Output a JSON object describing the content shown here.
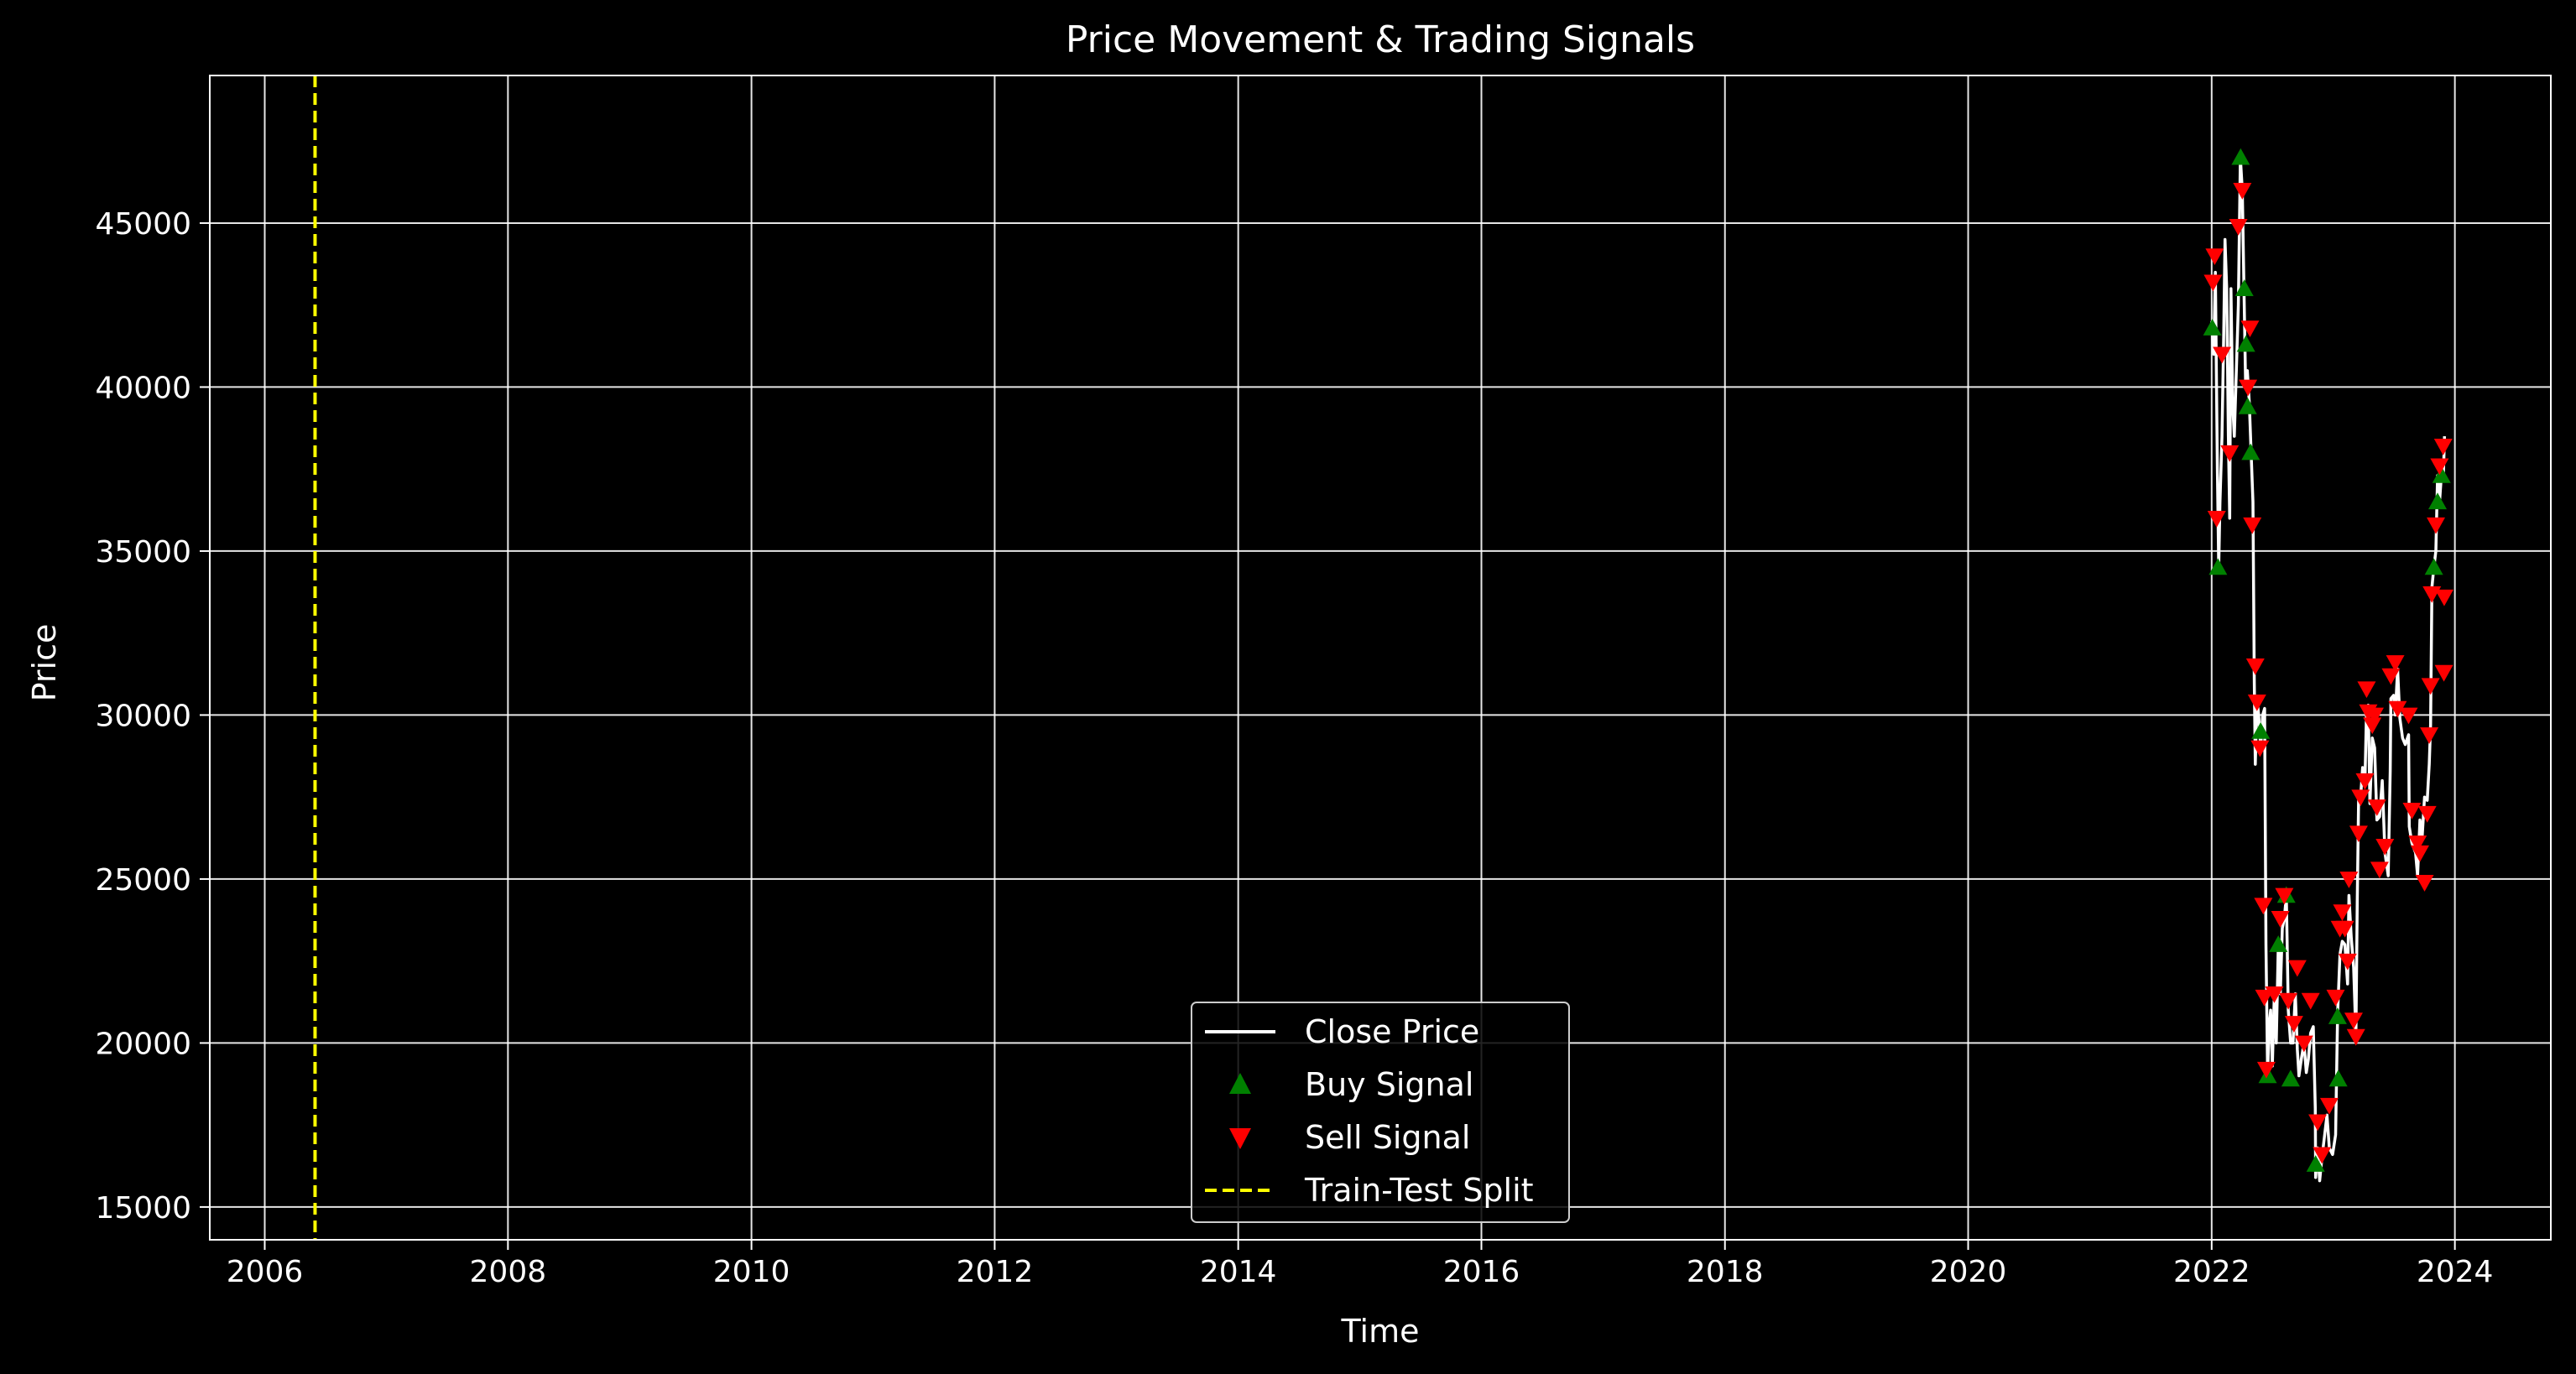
{
  "chart_data": {
    "type": "line",
    "title": "Price Movement & Trading Signals",
    "xlabel": "Time",
    "ylabel": "Price",
    "xlim": [
      "2005-07-20",
      "2024-10-15"
    ],
    "ylim": [
      14000,
      49500
    ],
    "x_ticks": [
      "2006",
      "2008",
      "2010",
      "2012",
      "2014",
      "2016",
      "2018",
      "2020",
      "2022",
      "2024"
    ],
    "y_ticks": [
      15000,
      20000,
      25000,
      30000,
      35000,
      40000,
      45000
    ],
    "grid": true,
    "legend_position": "lower-center",
    "colors": {
      "background": "#000000",
      "axes": "#ffffff",
      "grid": "#ffffff",
      "close": "#ffffff",
      "buy": "#008000",
      "sell": "#ff0000",
      "split": "#ffff00"
    },
    "legend": [
      {
        "key": "close",
        "label": "Close Price",
        "marker": "line"
      },
      {
        "key": "buy",
        "label": "Buy Signal",
        "marker": "triangle-up"
      },
      {
        "key": "sell",
        "label": "Sell Signal",
        "marker": "triangle-down"
      },
      {
        "key": "split",
        "label": "Train-Test Split",
        "marker": "dashed-line"
      }
    ],
    "train_test_split": "2006-06-01",
    "series": [
      {
        "name": "Close Price",
        "key": "close",
        "points": [
          [
            "2022-01-01",
            42000
          ],
          [
            "2022-01-07",
            41000
          ],
          [
            "2022-01-12",
            43500
          ],
          [
            "2022-01-18",
            37500
          ],
          [
            "2022-01-22",
            34500
          ],
          [
            "2022-01-26",
            36500
          ],
          [
            "2022-02-01",
            38500
          ],
          [
            "2022-02-06",
            41500
          ],
          [
            "2022-02-10",
            44500
          ],
          [
            "2022-02-15",
            43000
          ],
          [
            "2022-02-20",
            38500
          ],
          [
            "2022-02-24",
            36000
          ],
          [
            "2022-02-28",
            43000
          ],
          [
            "2022-03-05",
            39500
          ],
          [
            "2022-03-10",
            38500
          ],
          [
            "2022-03-16",
            40500
          ],
          [
            "2022-03-22",
            42500
          ],
          [
            "2022-03-28",
            47000
          ],
          [
            "2022-04-03",
            46000
          ],
          [
            "2022-04-08",
            43000
          ],
          [
            "2022-04-13",
            40000
          ],
          [
            "2022-04-18",
            40500
          ],
          [
            "2022-04-24",
            39500
          ],
          [
            "2022-04-30",
            37800
          ],
          [
            "2022-05-05",
            36500
          ],
          [
            "2022-05-09",
            31000
          ],
          [
            "2022-05-12",
            28500
          ],
          [
            "2022-05-17",
            30500
          ],
          [
            "2022-05-22",
            30000
          ],
          [
            "2022-05-28",
            29000
          ],
          [
            "2022-06-03",
            30000
          ],
          [
            "2022-06-09",
            30200
          ],
          [
            "2022-06-13",
            23000
          ],
          [
            "2022-06-18",
            19000
          ],
          [
            "2022-06-22",
            20500
          ],
          [
            "2022-06-27",
            21000
          ],
          [
            "2022-07-02",
            19300
          ],
          [
            "2022-07-08",
            21500
          ],
          [
            "2022-07-14",
            20000
          ],
          [
            "2022-07-20",
            23000
          ],
          [
            "2022-07-26",
            21500
          ],
          [
            "2022-08-01",
            23500
          ],
          [
            "2022-08-07",
            23800
          ],
          [
            "2022-08-13",
            24500
          ],
          [
            "2022-08-19",
            21000
          ],
          [
            "2022-08-26",
            20000
          ],
          [
            "2022-09-02",
            20000
          ],
          [
            "2022-09-09",
            21500
          ],
          [
            "2022-09-15",
            19800
          ],
          [
            "2022-09-20",
            19000
          ],
          [
            "2022-09-27",
            19500
          ],
          [
            "2022-10-05",
            20000
          ],
          [
            "2022-10-12",
            19100
          ],
          [
            "2022-10-18",
            19500
          ],
          [
            "2022-10-25",
            20300
          ],
          [
            "2022-11-02",
            20500
          ],
          [
            "2022-11-08",
            18000
          ],
          [
            "2022-11-09",
            15900
          ],
          [
            "2022-11-15",
            16800
          ],
          [
            "2022-11-21",
            15800
          ],
          [
            "2022-11-28",
            16500
          ],
          [
            "2022-12-05",
            17100
          ],
          [
            "2022-12-13",
            17800
          ],
          [
            "2022-12-20",
            16800
          ],
          [
            "2022-12-30",
            16600
          ],
          [
            "2023-01-08",
            17200
          ],
          [
            "2023-01-14",
            20900
          ],
          [
            "2023-01-21",
            22700
          ],
          [
            "2023-01-28",
            23100
          ],
          [
            "2023-02-05",
            23000
          ],
          [
            "2023-02-13",
            21800
          ],
          [
            "2023-02-17",
            24500
          ],
          [
            "2023-02-24",
            23200
          ],
          [
            "2023-03-03",
            22300
          ],
          [
            "2023-03-10",
            20200
          ],
          [
            "2023-03-14",
            24300
          ],
          [
            "2023-03-18",
            27400
          ],
          [
            "2023-03-24",
            27500
          ],
          [
            "2023-03-30",
            28400
          ],
          [
            "2023-04-06",
            28000
          ],
          [
            "2023-04-11",
            30200
          ],
          [
            "2023-04-16",
            30300
          ],
          [
            "2023-04-21",
            27300
          ],
          [
            "2023-04-28",
            29300
          ],
          [
            "2023-05-05",
            29000
          ],
          [
            "2023-05-12",
            26800
          ],
          [
            "2023-05-20",
            26900
          ],
          [
            "2023-05-28",
            28000
          ],
          [
            "2023-06-05",
            25800
          ],
          [
            "2023-06-15",
            25100
          ],
          [
            "2023-06-21",
            28300
          ],
          [
            "2023-06-23",
            30500
          ],
          [
            "2023-07-01",
            30600
          ],
          [
            "2023-07-06",
            30000
          ],
          [
            "2023-07-13",
            31400
          ],
          [
            "2023-07-20",
            29900
          ],
          [
            "2023-07-28",
            29300
          ],
          [
            "2023-08-05",
            29100
          ],
          [
            "2023-08-15",
            29400
          ],
          [
            "2023-08-17",
            26600
          ],
          [
            "2023-08-25",
            26100
          ],
          [
            "2023-09-05",
            25800
          ],
          [
            "2023-09-11",
            25100
          ],
          [
            "2023-09-18",
            26800
          ],
          [
            "2023-09-25",
            26300
          ],
          [
            "2023-10-02",
            27500
          ],
          [
            "2023-10-10",
            27400
          ],
          [
            "2023-10-16",
            28500
          ],
          [
            "2023-10-20",
            29700
          ],
          [
            "2023-10-24",
            33900
          ],
          [
            "2023-10-30",
            34500
          ],
          [
            "2023-11-05",
            35000
          ],
          [
            "2023-11-10",
            37300
          ],
          [
            "2023-11-16",
            36500
          ],
          [
            "2023-11-22",
            37400
          ],
          [
            "2023-11-27",
            37200
          ],
          [
            "2023-12-01",
            38500
          ]
        ]
      },
      {
        "name": "Buy Signal",
        "key": "buy",
        "points": [
          [
            "2022-01-03",
            41800
          ],
          [
            "2022-01-20",
            34500
          ],
          [
            "2022-03-29",
            47000
          ],
          [
            "2022-04-09",
            43000
          ],
          [
            "2022-04-14",
            41300
          ],
          [
            "2022-04-19",
            39400
          ],
          [
            "2022-04-28",
            38000
          ],
          [
            "2022-05-28",
            29500
          ],
          [
            "2022-06-18",
            19000
          ],
          [
            "2022-07-20",
            23000
          ],
          [
            "2022-08-13",
            24500
          ],
          [
            "2022-08-26",
            18900
          ],
          [
            "2022-11-09",
            16300
          ],
          [
            "2023-01-14",
            20800
          ],
          [
            "2023-01-16",
            18900
          ],
          [
            "2023-10-30",
            34500
          ],
          [
            "2023-11-10",
            36500
          ],
          [
            "2023-11-22",
            37300
          ]
        ]
      },
      {
        "name": "Sell Signal",
        "key": "sell",
        "points": [
          [
            "2022-01-05",
            43200
          ],
          [
            "2022-01-10",
            44000
          ],
          [
            "2022-01-16",
            36000
          ],
          [
            "2022-02-01",
            41000
          ],
          [
            "2022-02-24",
            38000
          ],
          [
            "2022-03-22",
            44900
          ],
          [
            "2022-04-03",
            46000
          ],
          [
            "2022-04-20",
            40000
          ],
          [
            "2022-04-26",
            41800
          ],
          [
            "2022-05-03",
            35800
          ],
          [
            "2022-05-12",
            31500
          ],
          [
            "2022-05-17",
            30400
          ],
          [
            "2022-05-26",
            29000
          ],
          [
            "2022-06-05",
            24200
          ],
          [
            "2022-06-08",
            21400
          ],
          [
            "2022-06-14",
            19200
          ],
          [
            "2022-07-08",
            21500
          ],
          [
            "2022-07-26",
            23800
          ],
          [
            "2022-08-07",
            24500
          ],
          [
            "2022-08-19",
            21300
          ],
          [
            "2022-09-05",
            20600
          ],
          [
            "2022-09-15",
            22300
          ],
          [
            "2022-10-05",
            20000
          ],
          [
            "2022-10-25",
            21300
          ],
          [
            "2022-11-15",
            17600
          ],
          [
            "2022-11-28",
            16600
          ],
          [
            "2022-12-20",
            18100
          ],
          [
            "2023-01-08",
            21400
          ],
          [
            "2023-01-21",
            23500
          ],
          [
            "2023-01-28",
            24000
          ],
          [
            "2023-02-05",
            23500
          ],
          [
            "2023-02-13",
            22500
          ],
          [
            "2023-02-17",
            25000
          ],
          [
            "2023-03-03",
            20700
          ],
          [
            "2023-03-10",
            20200
          ],
          [
            "2023-03-18",
            26400
          ],
          [
            "2023-03-24",
            27500
          ],
          [
            "2023-04-06",
            28000
          ],
          [
            "2023-04-11",
            30800
          ],
          [
            "2023-04-16",
            30100
          ],
          [
            "2023-04-28",
            29700
          ],
          [
            "2023-05-05",
            30000
          ],
          [
            "2023-05-12",
            27200
          ],
          [
            "2023-05-20",
            25300
          ],
          [
            "2023-06-05",
            26000
          ],
          [
            "2023-06-23",
            31200
          ],
          [
            "2023-07-06",
            31600
          ],
          [
            "2023-07-13",
            30200
          ],
          [
            "2023-08-15",
            30000
          ],
          [
            "2023-08-25",
            27100
          ],
          [
            "2023-09-11",
            26100
          ],
          [
            "2023-09-18",
            25800
          ],
          [
            "2023-10-02",
            24900
          ],
          [
            "2023-10-10",
            27000
          ],
          [
            "2023-10-16",
            29400
          ],
          [
            "2023-10-20",
            30900
          ],
          [
            "2023-10-24",
            33700
          ],
          [
            "2023-11-05",
            35800
          ],
          [
            "2023-11-16",
            37600
          ],
          [
            "2023-11-27",
            38200
          ],
          [
            "2023-11-29",
            31300
          ],
          [
            "2023-11-30",
            33600
          ]
        ]
      }
    ]
  }
}
